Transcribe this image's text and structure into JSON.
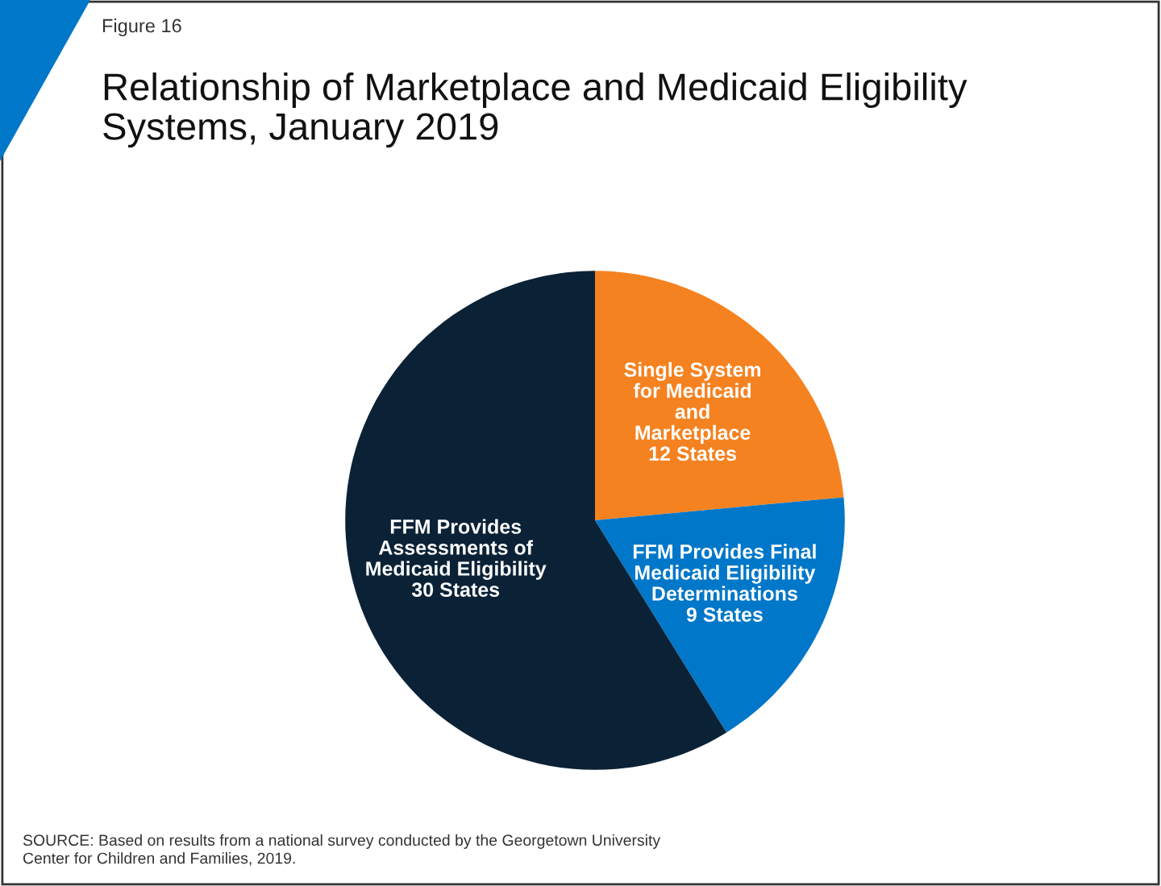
{
  "chart_data": {
    "type": "pie",
    "title": "Relationship of Marketplace and Medicaid Eligibility\nSystems, January 2019",
    "categories": [
      "Single System\nfor Medicaid\nand\nMarketplace",
      "FFM Provides Final\nMedicaid Eligibility\nDeterminations",
      "FFM Provides\nAssessments of\nMedicaid Eligibility"
    ],
    "values": [
      12,
      9,
      30
    ],
    "value_labels": [
      "12 States",
      "9 States",
      "30 States"
    ],
    "colors": [
      "#f58220",
      "#0077c8",
      "#0b2236"
    ],
    "annotations": [
      "Figure 16",
      "SOURCE: Based on results from a national survey conducted by the Georgetown University\nCenter for Children and Families, 2019."
    ]
  }
}
